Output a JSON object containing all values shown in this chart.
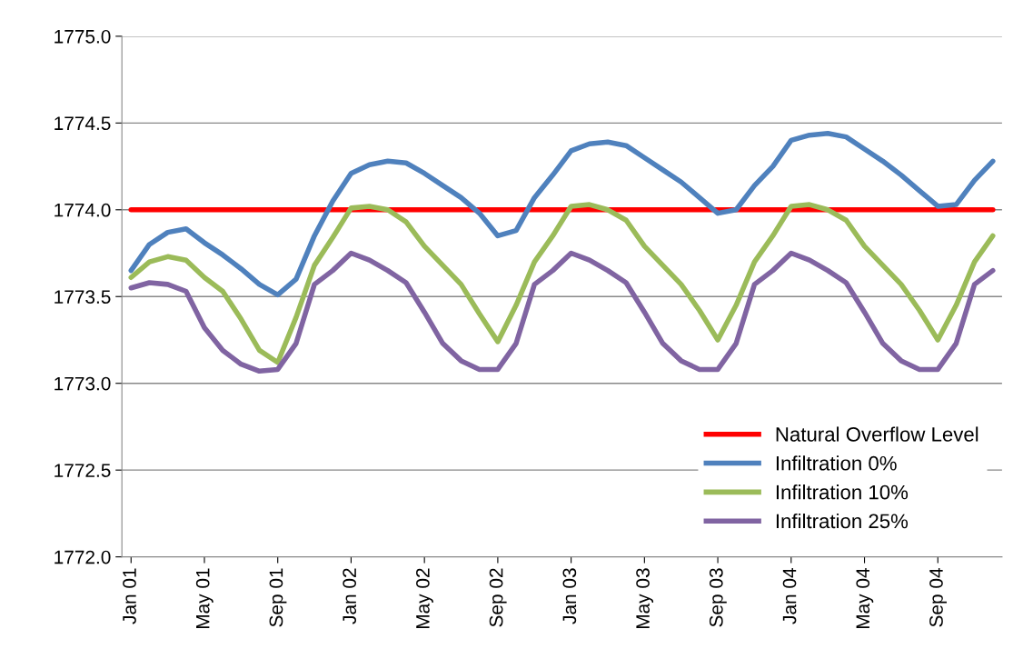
{
  "chart_data": {
    "type": "line",
    "categories": [
      "Jan 01",
      null,
      null,
      null,
      "May 01",
      null,
      null,
      null,
      "Sep 01",
      null,
      null,
      null,
      "Jan 02",
      null,
      null,
      null,
      "May 02",
      null,
      null,
      null,
      "Sep 02",
      null,
      null,
      null,
      "Jan 03",
      null,
      null,
      null,
      "May 03",
      null,
      null,
      null,
      "Sep 03",
      null,
      null,
      null,
      "Jan 04",
      null,
      null,
      null,
      "May 04",
      null,
      null,
      null,
      "Sep 04",
      null,
      null,
      null
    ],
    "series": [
      {
        "name": "Natural Overflow Level",
        "color": "#ff0000",
        "values": [
          1774.0,
          1774.0,
          1774.0,
          1774.0,
          1774.0,
          1774.0,
          1774.0,
          1774.0,
          1774.0,
          1774.0,
          1774.0,
          1774.0,
          1774.0,
          1774.0,
          1774.0,
          1774.0,
          1774.0,
          1774.0,
          1774.0,
          1774.0,
          1774.0,
          1774.0,
          1774.0,
          1774.0,
          1774.0,
          1774.0,
          1774.0,
          1774.0,
          1774.0,
          1774.0,
          1774.0,
          1774.0,
          1774.0,
          1774.0,
          1774.0,
          1774.0,
          1774.0,
          1774.0,
          1774.0,
          1774.0,
          1774.0,
          1774.0,
          1774.0,
          1774.0,
          1774.0,
          1774.0,
          1774.0,
          1774.0
        ]
      },
      {
        "name": "Infiltration 0%",
        "color": "#4f81bd",
        "values": [
          1773.65,
          1773.8,
          1773.87,
          1773.89,
          1773.81,
          1773.74,
          1773.66,
          1773.57,
          1773.51,
          1773.6,
          1773.85,
          1774.05,
          1774.21,
          1774.26,
          1774.28,
          1774.27,
          1774.21,
          1774.14,
          1774.07,
          1773.98,
          1773.85,
          1773.88,
          1774.07,
          1774.2,
          1774.34,
          1774.38,
          1774.39,
          1774.37,
          1774.3,
          1774.23,
          1774.16,
          1774.07,
          1773.98,
          1774.0,
          1774.14,
          1774.25,
          1774.4,
          1774.43,
          1774.44,
          1774.42,
          1774.35,
          1774.28,
          1774.2,
          1774.11,
          1774.02,
          1774.03,
          1774.17,
          1774.28
        ]
      },
      {
        "name": "Infiltration 10%",
        "color": "#9bbb59",
        "values": [
          1773.61,
          1773.7,
          1773.73,
          1773.71,
          1773.61,
          1773.53,
          1773.37,
          1773.19,
          1773.12,
          1773.38,
          1773.68,
          1773.84,
          1774.01,
          1774.02,
          1774.0,
          1773.93,
          1773.79,
          1773.68,
          1773.57,
          1773.4,
          1773.24,
          1773.45,
          1773.7,
          1773.85,
          1774.02,
          1774.03,
          1774.0,
          1773.94,
          1773.79,
          1773.68,
          1773.57,
          1773.42,
          1773.25,
          1773.45,
          1773.7,
          1773.85,
          1774.02,
          1774.03,
          1774.0,
          1773.94,
          1773.79,
          1773.68,
          1773.57,
          1773.42,
          1773.25,
          1773.45,
          1773.7,
          1773.85
        ]
      },
      {
        "name": "Infiltration 25%",
        "color": "#8064a2",
        "values": [
          1773.55,
          1773.58,
          1773.57,
          1773.53,
          1773.32,
          1773.19,
          1773.11,
          1773.07,
          1773.08,
          1773.23,
          1773.57,
          1773.65,
          1773.75,
          1773.71,
          1773.65,
          1773.58,
          1773.41,
          1773.23,
          1773.13,
          1773.08,
          1773.08,
          1773.23,
          1773.57,
          1773.65,
          1773.75,
          1773.71,
          1773.65,
          1773.58,
          1773.41,
          1773.23,
          1773.13,
          1773.08,
          1773.08,
          1773.23,
          1773.57,
          1773.65,
          1773.75,
          1773.71,
          1773.65,
          1773.58,
          1773.41,
          1773.23,
          1773.13,
          1773.08,
          1773.08,
          1773.23,
          1773.57,
          1773.65
        ]
      }
    ],
    "ylim": [
      1772.0,
      1775.0
    ],
    "yticks": [
      {
        "value": 1772.0,
        "label": "1772.0"
      },
      {
        "value": 1772.5,
        "label": "1772.5"
      },
      {
        "value": 1773.0,
        "label": "1773.0"
      },
      {
        "value": 1773.5,
        "label": "1773.5"
      },
      {
        "value": 1774.0,
        "label": "1774.0"
      },
      {
        "value": 1774.5,
        "label": "1774.5"
      },
      {
        "value": 1775.0,
        "label": "1775.0"
      }
    ],
    "grid": "y",
    "legend": "bottom right",
    "marker": "none",
    "line_style": "solid"
  }
}
